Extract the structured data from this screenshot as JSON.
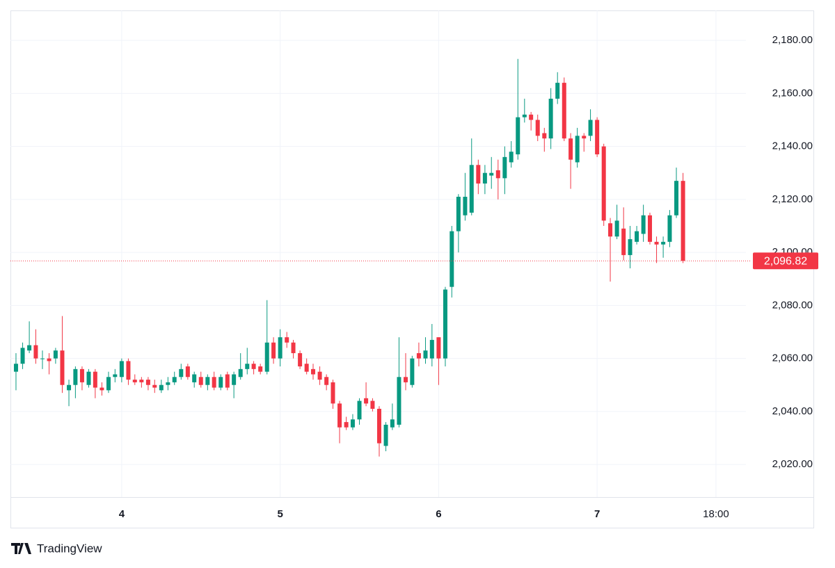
{
  "chart_data": {
    "type": "candlestick",
    "watermark": "TradingView",
    "x": [
      3.333,
      3.375,
      3.417,
      3.458,
      3.5,
      3.542,
      3.583,
      3.625,
      3.667,
      3.708,
      3.75,
      3.792,
      3.833,
      3.875,
      3.917,
      3.958,
      4,
      4.042,
      4.083,
      4.125,
      4.167,
      4.208,
      4.25,
      4.292,
      4.333,
      4.375,
      4.417,
      4.458,
      4.5,
      4.542,
      4.583,
      4.625,
      4.667,
      4.708,
      4.75,
      4.792,
      4.833,
      4.875,
      4.917,
      4.958,
      5,
      5.042,
      5.083,
      5.125,
      5.167,
      5.208,
      5.25,
      5.292,
      5.333,
      5.375,
      5.417,
      5.458,
      5.5,
      5.542,
      5.583,
      5.625,
      5.667,
      5.708,
      5.75,
      5.792,
      5.833,
      5.875,
      5.917,
      5.958,
      6,
      6.042,
      6.083,
      6.125,
      6.167,
      6.208,
      6.25,
      6.292,
      6.333,
      6.375,
      6.417,
      6.458,
      6.5,
      6.542,
      6.583,
      6.625,
      6.667,
      6.708,
      6.75,
      6.792,
      6.833,
      6.875,
      6.917,
      6.958,
      7,
      7.042,
      7.083,
      7.125,
      7.167,
      7.208,
      7.25,
      7.292,
      7.333,
      7.375,
      7.417,
      7.458,
      7.5,
      7.542
    ],
    "open": [
      2055,
      2058,
      2063,
      2065,
      2060,
      2060,
      2060,
      2063,
      2048,
      2050,
      2056,
      2050,
      2055,
      2049,
      2048,
      2053,
      2053,
      2059,
      2052,
      2052,
      2052,
      2050,
      2048,
      2050,
      2051,
      2053,
      2057,
      2051,
      2053,
      2050,
      2053,
      2049,
      2054,
      2050,
      2053,
      2056,
      2058,
      2057,
      2055,
      2066,
      2060,
      2068,
      2066,
      2062,
      2058,
      2056,
      2055,
      2053,
      2051,
      2043,
      2036,
      2034,
      2037,
      2045,
      2044,
      2041,
      2027,
      2034,
      2035,
      2053,
      2050,
      2062,
      2060,
      2060,
      2068,
      2060,
      2087,
      2108,
      2114,
      2115,
      2133,
      2126,
      2129,
      2131,
      2128,
      2134,
      2137,
      2151,
      2152,
      2150,
      2145,
      2143,
      2158,
      2164,
      2143,
      2134,
      2144,
      2144,
      2150,
      2140,
      2111,
      2106,
      2109,
      2099,
      2104,
      2107,
      2114,
      2104,
      2103,
      2104,
      2114,
      2127
    ],
    "high": [
      2062,
      2066,
      2074,
      2071,
      2063,
      2062,
      2064,
      2076,
      2052,
      2057,
      2057,
      2056,
      2056,
      2051,
      2055,
      2056,
      2060,
      2060,
      2054,
      2053,
      2053,
      2052,
      2052,
      2053,
      2055,
      2058,
      2058,
      2055,
      2055,
      2054,
      2055,
      2054,
      2055,
      2055,
      2062,
      2064,
      2059,
      2058,
      2082,
      2068,
      2071,
      2070,
      2067,
      2063,
      2060,
      2058,
      2057,
      2054,
      2052,
      2044,
      2038,
      2039,
      2045,
      2051,
      2045,
      2042,
      2036,
      2043,
      2068,
      2062,
      2061,
      2066,
      2068,
      2073,
      2068,
      2087,
      2110,
      2122,
      2130,
      2143,
      2135,
      2133,
      2136,
      2135,
      2140,
      2142,
      2173,
      2158,
      2153,
      2152,
      2147,
      2162,
      2168,
      2166,
      2145,
      2147,
      2145,
      2154,
      2151,
      2141,
      2113,
      2118,
      2117,
      2110,
      2110,
      2118,
      2115,
      2106,
      2106,
      2116,
      2132,
      2130
    ],
    "low": [
      2048,
      2056,
      2062,
      2058,
      2056,
      2054,
      2058,
      2047,
      2042,
      2045,
      2048,
      2049,
      2045,
      2046,
      2047,
      2051,
      2051,
      2050,
      2050,
      2049,
      2048,
      2047,
      2047,
      2048,
      2050,
      2052,
      2052,
      2049,
      2049,
      2048,
      2048,
      2048,
      2048,
      2045,
      2052,
      2054,
      2054,
      2054,
      2054,
      2058,
      2057,
      2064,
      2060,
      2056,
      2054,
      2052,
      2050,
      2048,
      2041,
      2028,
      2033,
      2033,
      2035,
      2042,
      2040,
      2023,
      2025,
      2033,
      2034,
      2048,
      2049,
      2057,
      2058,
      2057,
      2050,
      2057,
      2083,
      2100,
      2112,
      2114,
      2122,
      2122,
      2124,
      2120,
      2122,
      2132,
      2135,
      2149,
      2146,
      2142,
      2138,
      2139,
      2156,
      2142,
      2124,
      2132,
      2138,
      2142,
      2136,
      2110,
      2089,
      2105,
      2097,
      2094,
      2103,
      2104,
      2103,
      2096,
      2098,
      2102,
      2113,
      2096
    ],
    "close": [
      2058,
      2064,
      2065,
      2060,
      2060,
      2059,
      2063,
      2050,
      2050,
      2056,
      2051,
      2055,
      2049,
      2048,
      2053,
      2054,
      2059,
      2052,
      2051,
      2051,
      2050,
      2049,
      2050,
      2051,
      2053,
      2056,
      2053,
      2054,
      2050,
      2053,
      2049,
      2053,
      2049,
      2054,
      2056,
      2058,
      2056,
      2055,
      2066,
      2060,
      2068,
      2066,
      2062,
      2057,
      2055,
      2054,
      2052,
      2050,
      2043,
      2034,
      2034,
      2037,
      2044,
      2043,
      2041,
      2028,
      2035,
      2037,
      2053,
      2051,
      2060,
      2060,
      2063,
      2067,
      2060,
      2086,
      2108,
      2121,
      2121,
      2133,
      2126,
      2130,
      2130,
      2128,
      2136,
      2138,
      2151,
      2152,
      2150,
      2144,
      2143,
      2158,
      2164,
      2143,
      2135,
      2144,
      2143,
      2150,
      2137,
      2112,
      2106,
      2112,
      2099,
      2105,
      2108,
      2114,
      2104,
      2103,
      2104,
      2114,
      2127,
      2096.82
    ],
    "up_color": "#089981",
    "down_color": "#f23645",
    "last_price": {
      "value": 2096.82,
      "label": "2,096.82"
    },
    "xlim": [
      3.298,
      7.939
    ],
    "xticks": [
      4,
      5,
      6,
      7,
      {
        "value": 7.75,
        "label": "18:00"
      }
    ],
    "ylim": [
      2007.7,
      2191.3
    ],
    "yticks": [
      {
        "value": 2020,
        "label": "2,020.00"
      },
      {
        "value": 2040,
        "label": "2,040.00"
      },
      {
        "value": 2060,
        "label": "2,060.00"
      },
      {
        "value": 2080,
        "label": "2,080.00"
      },
      {
        "value": 2100,
        "label": "2,100.00"
      },
      {
        "value": 2120,
        "label": "2,120.00"
      },
      {
        "value": 2140,
        "label": "2,140.00"
      },
      {
        "value": 2160,
        "label": "2,160.00"
      },
      {
        "value": 2180,
        "label": "2,180.00"
      }
    ],
    "grid": true
  }
}
